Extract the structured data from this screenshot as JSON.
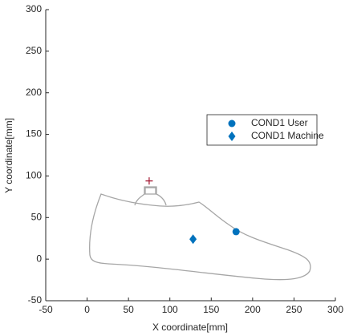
{
  "chart_data": {
    "type": "scatter",
    "xlabel": "X coordinate[mm]",
    "ylabel": "Y coordinate[mm]",
    "xlim": [
      -50,
      300
    ],
    "ylim": [
      -50,
      300
    ],
    "xticks": [
      -50,
      0,
      50,
      100,
      150,
      200,
      250,
      300
    ],
    "yticks": [
      -50,
      0,
      50,
      100,
      150,
      200,
      250,
      300
    ],
    "series": [
      {
        "name": "COND1 User",
        "color": "#0072bd",
        "marker": "circle",
        "x": [
          180
        ],
        "values": [
          33
        ]
      },
      {
        "name": "COND1 Machine",
        "color": "#0072bd",
        "marker": "diamond",
        "x": [
          128
        ],
        "values": [
          24
        ]
      },
      {
        "color": "#a2142f",
        "marker": "plus",
        "x": [
          75
        ],
        "values": [
          94
        ]
      }
    ]
  }
}
